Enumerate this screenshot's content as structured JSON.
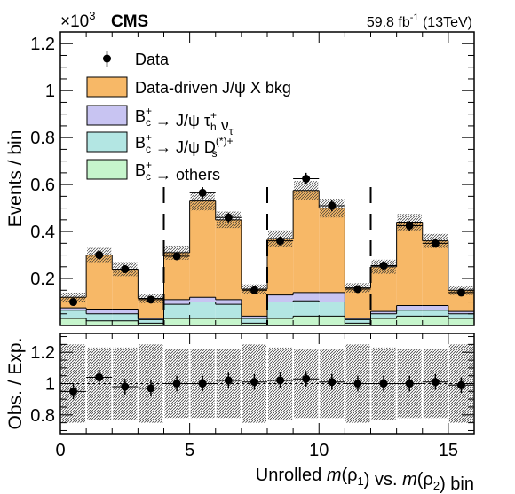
{
  "header": {
    "experiment": "CMS",
    "exponent_base": "×10",
    "exponent_power": "3",
    "lumi_value": "59.8 fb",
    "lumi_sup": "-1",
    "lumi_energy": " (13TeV)"
  },
  "colors": {
    "data": "#000000",
    "jpsi_bkg": "#f7b867",
    "tau": "#c8c4f2",
    "ds": "#b3e6e3",
    "others": "#c6f5cc",
    "outline": "#000000"
  },
  "chart_data": [
    {
      "type": "bar",
      "stacked": true,
      "ylabel": "Events / bin",
      "yscale_note": "×10^3",
      "x": [
        0.5,
        1.5,
        2.5,
        3.5,
        4.5,
        5.5,
        6.5,
        7.5,
        8.5,
        9.5,
        10.5,
        11.5,
        12.5,
        13.5,
        14.5,
        15.5
      ],
      "xlim": [
        0,
        16
      ],
      "ylim": [
        0,
        1.25
      ],
      "yticks": [
        0.2,
        0.4,
        0.6,
        0.8,
        1,
        1.2
      ],
      "dividers": [
        4,
        8,
        12
      ],
      "series": [
        {
          "name": "B_c^+ → others",
          "key": "others",
          "values": [
            0.03,
            0.02,
            0.02,
            0.01,
            0.03,
            0.03,
            0.03,
            0.01,
            0.03,
            0.04,
            0.04,
            0.01,
            0.03,
            0.04,
            0.04,
            0.03
          ]
        },
        {
          "name": "B_c^+ → J/ψ D_s^(*)+",
          "key": "ds",
          "values": [
            0.035,
            0.03,
            0.03,
            0.015,
            0.06,
            0.07,
            0.06,
            0.02,
            0.07,
            0.065,
            0.06,
            0.015,
            0.02,
            0.025,
            0.025,
            0.02
          ]
        },
        {
          "name": "B_c^+ → J/ψ τ_h^+ ν_τ",
          "key": "tau",
          "values": [
            0.01,
            0.02,
            0.02,
            0.005,
            0.02,
            0.02,
            0.02,
            0.01,
            0.03,
            0.035,
            0.04,
            0.005,
            0.01,
            0.02,
            0.02,
            0.01
          ]
        },
        {
          "name": "Data-driven J/ψ X bkg",
          "key": "jpsi_bkg",
          "values": [
            0.045,
            0.23,
            0.17,
            0.085,
            0.2,
            0.41,
            0.34,
            0.115,
            0.24,
            0.435,
            0.36,
            0.13,
            0.19,
            0.355,
            0.275,
            0.09
          ]
        }
      ],
      "mc_unc": [
        0.02,
        0.03,
        0.03,
        0.02,
        0.03,
        0.04,
        0.035,
        0.02,
        0.035,
        0.04,
        0.04,
        0.02,
        0.03,
        0.035,
        0.03,
        0.02
      ],
      "data": {
        "name": "Data",
        "values": [
          0.1,
          0.3,
          0.24,
          0.11,
          0.295,
          0.565,
          0.46,
          0.15,
          0.36,
          0.625,
          0.51,
          0.155,
          0.255,
          0.425,
          0.35,
          0.14
        ],
        "errors": [
          0.01,
          0.018,
          0.016,
          0.01,
          0.017,
          0.024,
          0.021,
          0.012,
          0.019,
          0.025,
          0.023,
          0.012,
          0.016,
          0.021,
          0.019,
          0.012
        ]
      },
      "legend": [
        {
          "key": "data",
          "label": "Data"
        },
        {
          "key": "jpsi_bkg",
          "label": "Data-driven J/ψ X bkg"
        },
        {
          "key": "tau",
          "label": "B_c^+ → J/ψ τ_h^+ ν_τ"
        },
        {
          "key": "ds",
          "label": "B_c^+ → J/ψ D_s^(*)+"
        },
        {
          "key": "others",
          "label": "B_c^+ → others"
        }
      ],
      "legend_placement": "top-left"
    },
    {
      "type": "scatter",
      "ylabel": "Obs. / Exp.",
      "xlabel": "Unrolled m(ρ1) vs. m(ρ2) bin",
      "xlim": [
        0,
        16
      ],
      "ylim": [
        0.68,
        1.32
      ],
      "xticks": [
        0,
        5,
        10,
        15
      ],
      "yticks": [
        0.8,
        1,
        1.2
      ],
      "reference_line": 1,
      "x": [
        0.5,
        1.5,
        2.5,
        3.5,
        4.5,
        5.5,
        6.5,
        7.5,
        8.5,
        9.5,
        10.5,
        11.5,
        12.5,
        13.5,
        14.5,
        15.5
      ],
      "values": [
        0.95,
        1.04,
        0.98,
        0.97,
        1.0,
        1.0,
        1.02,
        1.01,
        1.02,
        1.03,
        1.01,
        1.0,
        1.0,
        1.0,
        1.01,
        0.99
      ],
      "errors": [
        0.25,
        0.23,
        0.23,
        0.25,
        0.22,
        0.22,
        0.22,
        0.25,
        0.23,
        0.22,
        0.22,
        0.25,
        0.23,
        0.22,
        0.22,
        0.25
      ],
      "stat_errors": [
        0.05,
        0.05,
        0.05,
        0.05,
        0.05,
        0.05,
        0.05,
        0.05,
        0.05,
        0.05,
        0.05,
        0.05,
        0.05,
        0.05,
        0.05,
        0.05
      ]
    }
  ]
}
